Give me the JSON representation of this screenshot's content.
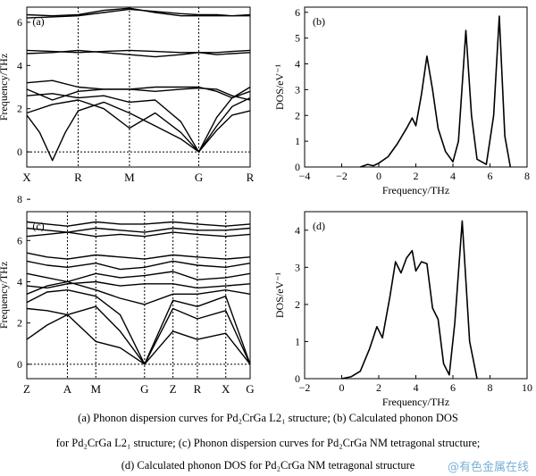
{
  "chart_data": [
    {
      "panel": "(a)",
      "type": "line",
      "ylabel": "Frequency/THz",
      "ylim": [
        -0.7,
        6.7
      ],
      "yticks": [
        0,
        2,
        4,
        6
      ],
      "high_symmetry_points": [
        "X",
        "R",
        "M",
        "G",
        "R"
      ],
      "x_positions": [
        0,
        1,
        2,
        3.35,
        4.35
      ],
      "series": [
        {
          "x": [
            0,
            0.25,
            0.5,
            0.75,
            1,
            1.5,
            2,
            2.5,
            3,
            3.35,
            3.7,
            4,
            4.35
          ],
          "values": [
            1.7,
            0.9,
            -0.4,
            0.9,
            1.9,
            2.3,
            1.8,
            1.2,
            0.6,
            0,
            1.0,
            1.7,
            1.9
          ]
        },
        {
          "x": [
            0,
            0.5,
            1,
            1.5,
            2,
            2.5,
            3,
            3.35,
            3.7,
            4,
            4.35
          ],
          "values": [
            1.8,
            2.2,
            2.4,
            2.0,
            1.1,
            1.8,
            0.9,
            0,
            1.2,
            2.1,
            2.5
          ]
        },
        {
          "x": [
            0,
            0.5,
            1,
            1.5,
            2,
            2.5,
            3,
            3.35,
            3.7,
            4,
            4.35
          ],
          "values": [
            2.6,
            2.7,
            2.5,
            2.6,
            2.3,
            2.4,
            1.4,
            0,
            1.6,
            2.5,
            2.8
          ]
        },
        {
          "x": [
            0,
            0.5,
            1,
            1.5,
            2,
            2.5,
            3,
            3.35,
            3.7,
            4,
            4.35
          ],
          "values": [
            2.9,
            2.4,
            2.8,
            2.9,
            2.9,
            2.8,
            2.9,
            2.95,
            2.9,
            2.6,
            2.4
          ]
        },
        {
          "x": [
            0,
            0.5,
            1,
            1.5,
            2,
            2.5,
            3,
            3.35,
            3.7,
            4,
            4.35
          ],
          "values": [
            3.2,
            3.3,
            3.0,
            2.9,
            2.9,
            3.0,
            3.0,
            3.0,
            2.8,
            2.5,
            3.0
          ]
        },
        {
          "x": [
            0,
            0.5,
            1,
            1.5,
            2,
            2.5,
            3,
            3.35,
            3.7,
            4,
            4.35
          ],
          "values": [
            4.7,
            4.65,
            4.6,
            4.65,
            4.7,
            4.65,
            4.6,
            4.6,
            4.6,
            4.65,
            4.7
          ]
        },
        {
          "x": [
            0,
            0.5,
            1,
            1.5,
            2,
            2.5,
            3,
            3.35,
            3.7,
            4,
            4.35
          ],
          "values": [
            4.55,
            4.6,
            4.7,
            4.6,
            4.5,
            4.4,
            4.5,
            4.6,
            4.5,
            4.55,
            4.6
          ]
        },
        {
          "x": [
            0,
            0.5,
            1,
            1.5,
            2,
            2.5,
            3,
            3.35,
            3.7,
            4,
            4.35
          ],
          "values": [
            6.2,
            6.25,
            6.3,
            6.45,
            6.6,
            6.5,
            6.4,
            6.35,
            6.35,
            6.3,
            6.3
          ]
        },
        {
          "x": [
            0,
            0.5,
            1,
            1.5,
            2,
            2.5,
            3,
            3.35,
            3.7,
            4,
            4.35
          ],
          "values": [
            6.35,
            6.3,
            6.35,
            6.55,
            6.65,
            6.45,
            6.3,
            6.3,
            6.3,
            6.3,
            6.35
          ]
        }
      ]
    },
    {
      "panel": "(b)",
      "type": "line",
      "xlabel": "Frequency/THz",
      "ylabel": "DOS/eV⁻¹",
      "xlim": [
        -4,
        8
      ],
      "ylim": [
        0,
        6.2
      ],
      "xticks": [
        -4,
        -2,
        0,
        2,
        4,
        6,
        8
      ],
      "yticks": [
        0,
        1,
        2,
        3,
        4,
        5,
        6
      ],
      "x": [
        -1,
        -0.6,
        -0.3,
        0,
        0.5,
        1,
        1.5,
        1.8,
        2.0,
        2.3,
        2.6,
        2.9,
        3.2,
        3.6,
        4.0,
        4.3,
        4.7,
        5.0,
        5.3,
        5.8,
        6.2,
        6.5,
        6.8,
        7.1
      ],
      "values": [
        0,
        0.1,
        0.05,
        0.15,
        0.4,
        0.9,
        1.5,
        1.9,
        1.6,
        2.8,
        4.3,
        3.0,
        1.5,
        0.6,
        0.2,
        1.0,
        5.3,
        2.0,
        0.3,
        0.1,
        2.0,
        5.85,
        1.2,
        0
      ]
    },
    {
      "panel": "(c)",
      "type": "line",
      "ylabel": "Frequency/THz",
      "ylim": [
        -0.7,
        7.4
      ],
      "yticks": [
        0,
        2,
        4,
        6,
        8
      ],
      "high_symmetry_points": [
        "Z",
        "A",
        "M",
        "G",
        "Z",
        "R",
        "X",
        "G"
      ],
      "x_positions": [
        0,
        1,
        1.7,
        2.9,
        3.6,
        4.2,
        4.9,
        5.5
      ],
      "series": [
        {
          "x": [
            0,
            0.5,
            1,
            1.7,
            2.3,
            2.9,
            3.6,
            4.2,
            4.9,
            5.5
          ],
          "values": [
            1.2,
            1.9,
            2.4,
            1.1,
            0.8,
            0,
            1.6,
            1.2,
            1.5,
            0
          ]
        },
        {
          "x": [
            0,
            0.5,
            1,
            1.7,
            2.3,
            2.9,
            3.6,
            4.2,
            4.9,
            5.5
          ],
          "values": [
            2.7,
            2.6,
            2.4,
            2.8,
            1.6,
            0,
            2.7,
            2.2,
            2.6,
            0
          ]
        },
        {
          "x": [
            0,
            0.5,
            1,
            1.7,
            2.3,
            2.9,
            3.6,
            4.2,
            4.9,
            5.5
          ],
          "values": [
            3.0,
            3.5,
            3.6,
            3.3,
            2.4,
            0,
            3.1,
            2.8,
            3.3,
            0
          ]
        },
        {
          "x": [
            0,
            0.5,
            1,
            1.7,
            2.3,
            2.9,
            3.6,
            4.2,
            4.9,
            5.5
          ],
          "values": [
            3.4,
            3.8,
            4.0,
            3.6,
            3.2,
            2.9,
            3.4,
            3.4,
            3.6,
            3.4
          ]
        },
        {
          "x": [
            0,
            0.5,
            1,
            1.7,
            2.3,
            2.9,
            3.6,
            4.2,
            4.9,
            5.5
          ],
          "values": [
            3.8,
            3.7,
            3.9,
            4.0,
            3.8,
            3.9,
            3.9,
            3.7,
            3.8,
            3.9
          ]
        },
        {
          "x": [
            0,
            0.5,
            1,
            1.7,
            2.3,
            2.9,
            3.6,
            4.2,
            4.9,
            5.5
          ],
          "values": [
            4.4,
            4.2,
            4.0,
            4.4,
            4.2,
            4.3,
            4.5,
            4.1,
            4.2,
            4.4
          ]
        },
        {
          "x": [
            0,
            0.5,
            1,
            1.7,
            2.3,
            2.9,
            3.6,
            4.2,
            4.9,
            5.5
          ],
          "values": [
            5.0,
            4.8,
            4.7,
            4.9,
            4.6,
            4.7,
            5.0,
            4.8,
            4.7,
            4.9
          ]
        },
        {
          "x": [
            0,
            0.5,
            1,
            1.7,
            2.3,
            2.9,
            3.6,
            4.2,
            4.9,
            5.5
          ],
          "values": [
            5.4,
            5.2,
            5.1,
            5.3,
            5.2,
            5.1,
            5.3,
            5.2,
            5.1,
            5.2
          ]
        },
        {
          "x": [
            0,
            0.5,
            1,
            1.7,
            2.3,
            2.9,
            3.6,
            4.2,
            4.9,
            5.5
          ],
          "values": [
            6.2,
            6.3,
            6.4,
            6.2,
            6.3,
            6.2,
            6.4,
            6.3,
            6.2,
            6.3
          ]
        },
        {
          "x": [
            0,
            0.5,
            1,
            1.7,
            2.3,
            2.9,
            3.6,
            4.2,
            4.9,
            5.5
          ],
          "values": [
            6.6,
            6.5,
            6.4,
            6.6,
            6.5,
            6.4,
            6.6,
            6.5,
            6.5,
            6.6
          ]
        },
        {
          "x": [
            0,
            0.5,
            1,
            1.7,
            2.3,
            2.9,
            3.6,
            4.2,
            4.9,
            5.5
          ],
          "values": [
            6.9,
            6.8,
            6.7,
            6.9,
            6.8,
            6.8,
            6.9,
            6.8,
            6.7,
            6.8
          ]
        }
      ]
    },
    {
      "panel": "(d)",
      "type": "line",
      "xlabel": "Frequency/THz",
      "ylabel": "DOS/eV⁻¹",
      "xlim": [
        -2,
        10
      ],
      "ylim": [
        0,
        4.5
      ],
      "xticks": [
        -2,
        0,
        2,
        4,
        6,
        8,
        10
      ],
      "yticks": [
        0,
        1,
        2,
        3,
        4
      ],
      "x": [
        0,
        0.5,
        1,
        1.5,
        1.9,
        2.2,
        2.6,
        2.9,
        3.2,
        3.5,
        3.8,
        4.0,
        4.3,
        4.6,
        4.9,
        5.2,
        5.5,
        5.8,
        6.1,
        6.5,
        6.9,
        7.3
      ],
      "values": [
        0,
        0.05,
        0.2,
        0.8,
        1.4,
        1.1,
        2.2,
        3.15,
        2.85,
        3.25,
        3.45,
        2.9,
        3.15,
        3.1,
        1.9,
        1.6,
        0.4,
        0.1,
        1.5,
        4.25,
        1.0,
        0
      ]
    }
  ],
  "panel_labels": [
    "(a)",
    "(b)",
    "(c)",
    "(d)"
  ],
  "caption": {
    "line1": "(a) Phonon dispersion curves for Pd₂CrGa L2₁ structure; (b) Calculated phonon DOS",
    "line2": "for Pd₂CrGa L2₁ structure; (c) Phonon dispersion curves for Pd₂CrGa NM tetragonal structure;",
    "line3": "(d) Calculated phonon DOS for  Pd₂CrGa NM tetragonal structure"
  },
  "watermark": "@有色金属在线"
}
